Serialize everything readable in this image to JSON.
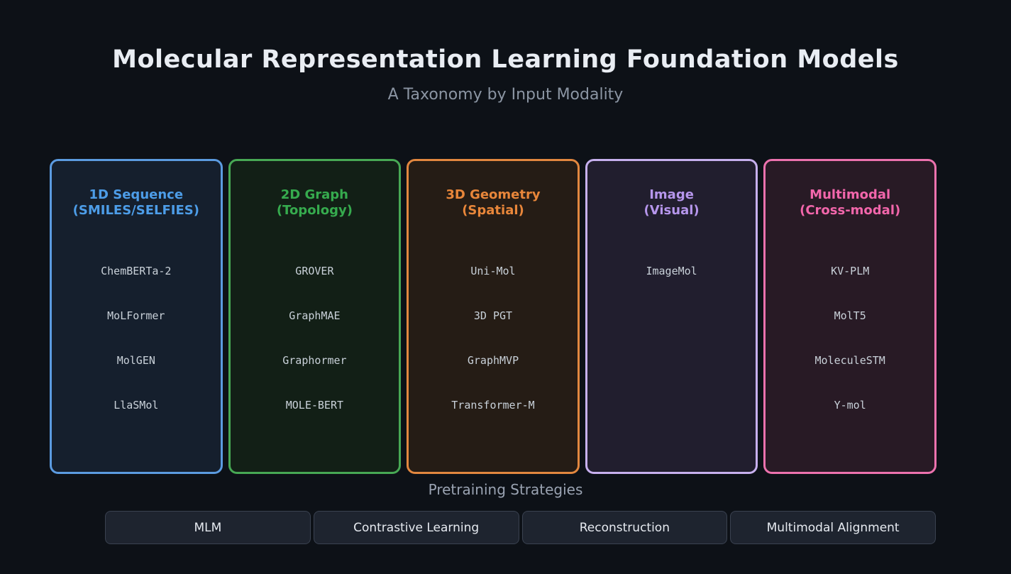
{
  "header": {
    "title": "Molecular Representation Learning Foundation Models",
    "subtitle": "A Taxonomy by Input Modality"
  },
  "theme": {
    "page_bg": "#0d1117",
    "title_color": "#e9edf3",
    "subtitle_color": "#8b95a3",
    "model_text": "#c9d1d9",
    "label_color": "#9aa3b2",
    "chip_bg": "#1e242f",
    "chip_border": "#3a4250",
    "chip_text": "#e6eaf0"
  },
  "categories": [
    {
      "id": "1d-sequence",
      "title_line1": "1D Sequence",
      "title_line2": "(SMILES/SELFIES)",
      "accent": "#5b9be0",
      "heading_color": "#4d9de8",
      "bg": "#151f2d",
      "models": [
        "ChemBERTa-2",
        "MoLFormer",
        "MolGEN",
        "LlaSMol"
      ]
    },
    {
      "id": "2d-graph",
      "title_line1": "2D Graph",
      "title_line2": "(Topology)",
      "accent": "#47a854",
      "heading_color": "#36ab4e",
      "bg": "#121f16",
      "models": [
        "GROVER",
        "GraphMAE",
        "Graphormer",
        "MOLE-BERT"
      ]
    },
    {
      "id": "3d-geometry",
      "title_line1": "3D Geometry",
      "title_line2": "(Spatial)",
      "accent": "#e2873f",
      "heading_color": "#e8863a",
      "bg": "#251c15",
      "models": [
        "Uni-Mol",
        "3D PGT",
        "GraphMVP",
        "Transformer-M"
      ]
    },
    {
      "id": "image",
      "title_line1": "Image",
      "title_line2": "(Visual)",
      "accent": "#c7b0ee",
      "heading_color": "#b696ec",
      "bg": "#211e2e",
      "models": [
        "ImageMol"
      ]
    },
    {
      "id": "multimodal",
      "title_line1": "Multimodal",
      "title_line2": "(Cross-modal)",
      "accent": "#ec72ae",
      "heading_color": "#f266ab",
      "bg": "#281a25",
      "models": [
        "KV-PLM",
        "MolT5",
        "MoleculeSTM",
        "Y-mol"
      ]
    }
  ],
  "pretraining": {
    "label": "Pretraining Strategies",
    "strategies": [
      "MLM",
      "Contrastive Learning",
      "Reconstruction",
      "Multimodal Alignment"
    ]
  }
}
